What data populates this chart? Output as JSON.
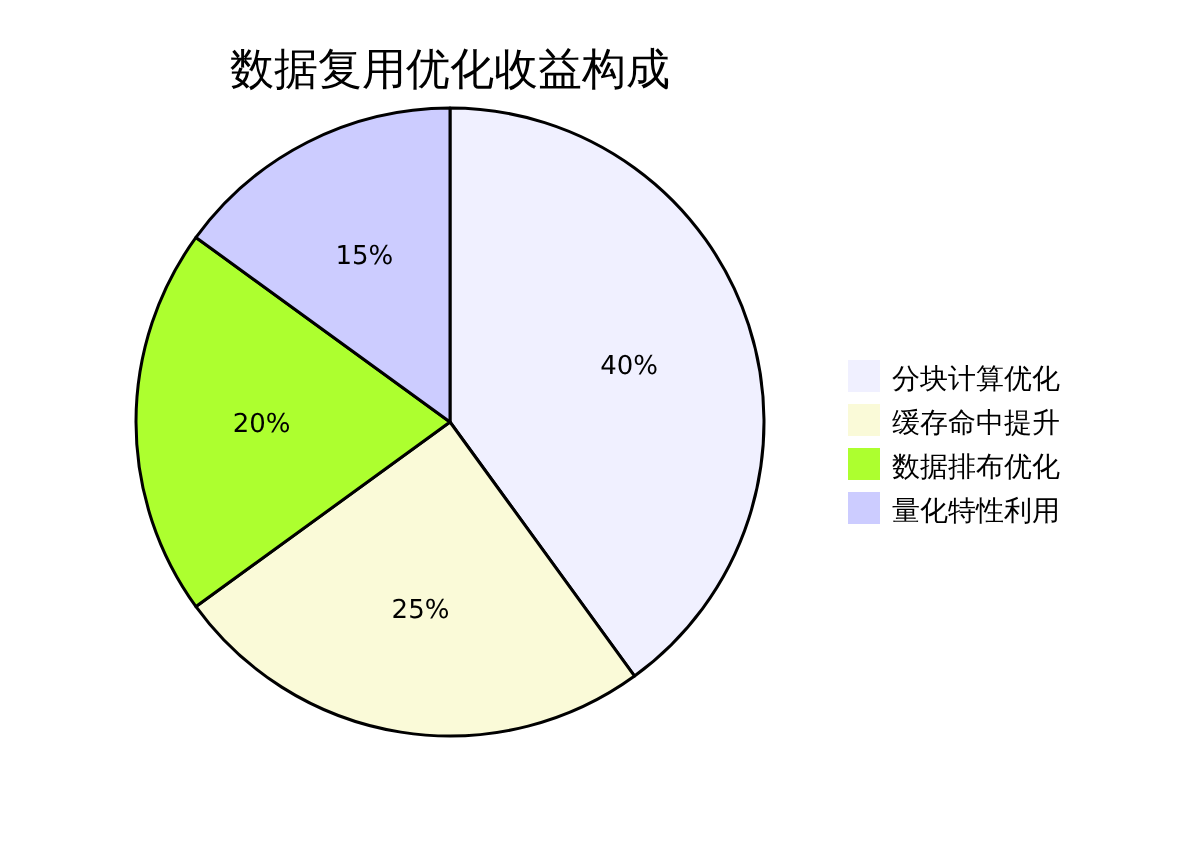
{
  "chart_data": {
    "type": "pie",
    "title": "数据复用优化收益构成",
    "categories": [
      "分块计算优化",
      "缓存命中提升",
      "数据排布优化",
      "量化特性利用"
    ],
    "values": [
      40,
      25,
      20,
      15
    ],
    "colors": [
      "#f0f0ff",
      "#fafad8",
      "#adff2f",
      "#ccccff"
    ],
    "value_labels": [
      "40%",
      "25%",
      "20%",
      "15%"
    ],
    "legend": "right"
  }
}
